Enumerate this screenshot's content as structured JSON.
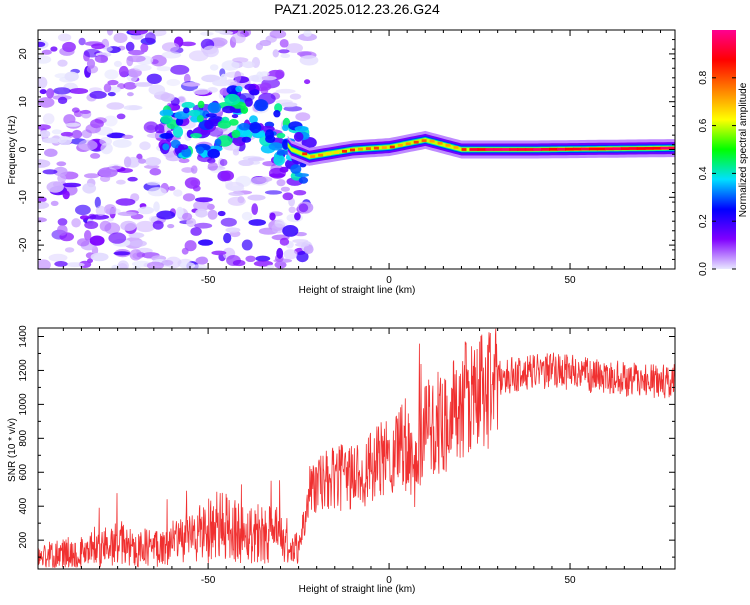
{
  "figure": {
    "title": "PAZ1.2025.012.23.26.G24"
  },
  "colors": {
    "snr_line": "#f03030",
    "colorbar_stops": [
      "#e8e8ff",
      "#8000ff",
      "#0000ff",
      "#00e0ff",
      "#00ff00",
      "#ffff00",
      "#ff8000",
      "#ff0000",
      "#ff0090"
    ]
  },
  "chart_data": [
    {
      "type": "heatmap",
      "xlabel": "Height of straight line (km)",
      "ylabel": "Frequency (Hz)",
      "xlim": [
        -97,
        79
      ],
      "ylim": [
        -25,
        25
      ],
      "xticks": [
        -50,
        0,
        50
      ],
      "yticks": [
        -20,
        -10,
        0,
        10,
        20
      ],
      "colorbar": {
        "label": "Normalized spectral amplitude",
        "range": [
          0.0,
          1.0
        ],
        "ticks": [
          0.0,
          0.2,
          0.4,
          0.6,
          0.8
        ]
      },
      "ridge": [
        {
          "x": -60,
          "y": 4.5
        },
        {
          "x": -50,
          "y": 3.5
        },
        {
          "x": -40,
          "y": 8
        },
        {
          "x": -35,
          "y": 6.5
        },
        {
          "x": -30,
          "y": 3
        },
        {
          "x": -27,
          "y": 0
        },
        {
          "x": -22,
          "y": -1.5
        },
        {
          "x": -10,
          "y": 0
        },
        {
          "x": 0,
          "y": 0.5
        },
        {
          "x": 10,
          "y": 2
        },
        {
          "x": 20,
          "y": 0
        },
        {
          "x": 40,
          "y": 0
        },
        {
          "x": 79,
          "y": 0.3
        }
      ]
    },
    {
      "type": "line",
      "xlabel": "Height of straight line (km)",
      "ylabel": "SNR (10 * v/v)",
      "xlim": [
        -97,
        79
      ],
      "ylim": [
        30,
        1450
      ],
      "xticks": [
        -50,
        0,
        50
      ],
      "yticks": [
        200,
        400,
        600,
        800,
        1000,
        1200,
        1400
      ],
      "series": [
        {
          "x": [
            -97,
            -90,
            -80,
            -75,
            -70,
            -65,
            -60,
            -55,
            -50,
            -45,
            -40,
            -35,
            -30,
            -27,
            -25,
            -22,
            -20,
            -15,
            -10,
            -5,
            0,
            5,
            7,
            10,
            15,
            20,
            25,
            30,
            35,
            40,
            45,
            50,
            55,
            60,
            65,
            70,
            75,
            79
          ],
          "values": [
            100,
            120,
            140,
            180,
            150,
            160,
            180,
            220,
            260,
            280,
            240,
            250,
            220,
            120,
            150,
            500,
            520,
            560,
            580,
            620,
            700,
            820,
            600,
            850,
            900,
            1000,
            1080,
            1150,
            1180,
            1190,
            1200,
            1190,
            1170,
            1160,
            1150,
            1140,
            1130,
            1150
          ]
        }
      ]
    }
  ]
}
